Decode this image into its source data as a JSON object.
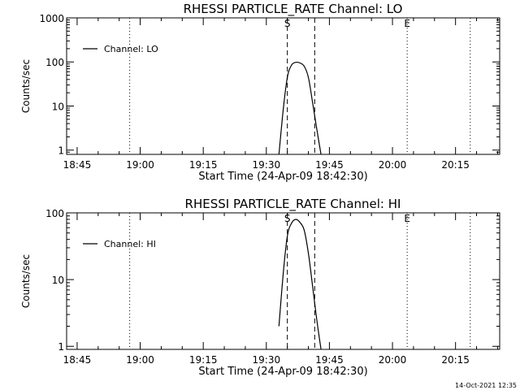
{
  "footer": {
    "timestamp": "14-Oct-2021 12:35"
  },
  "chart_data": [
    {
      "type": "line",
      "title": "RHESSI PARTICLE_RATE Channel: LO",
      "xlabel": "Start Time (24-Apr-09 18:42:30)",
      "ylabel": "Counts/sec",
      "yscale": "log",
      "xlim": [
        "18:42:30",
        "20:25:30"
      ],
      "ylim": [
        0.8,
        1000
      ],
      "x_ticks": [
        "18:45",
        "19:00",
        "19:15",
        "19:30",
        "19:45",
        "20:00",
        "20:15"
      ],
      "y_ticks": [
        "1",
        "10",
        "100",
        "1000"
      ],
      "legend": {
        "position": "top-left",
        "entries": [
          "Channel: LO"
        ]
      },
      "markers": [
        {
          "label": "S",
          "time": "19:35:00",
          "style": "dashed"
        },
        {
          "label": "",
          "time": "19:41:30",
          "style": "dashed"
        },
        {
          "label": "",
          "time": "18:57:30",
          "style": "dotted"
        },
        {
          "label": "E",
          "time": "20:03:30",
          "style": "dotted"
        },
        {
          "label": "",
          "time": "20:18:30",
          "style": "dotted"
        }
      ],
      "series": [
        {
          "name": "Channel: LO",
          "x": [
            "19:33:00",
            "19:34:00",
            "19:35:00",
            "19:36:00",
            "19:37:00",
            "19:38:00",
            "19:39:00",
            "19:40:00",
            "19:41:00",
            "19:42:00",
            "19:43:00"
          ],
          "y": [
            0.8,
            8,
            45,
            85,
            98,
            95,
            80,
            45,
            12,
            3,
            0.8
          ]
        }
      ]
    },
    {
      "type": "line",
      "title": "RHESSI PARTICLE_RATE Channel: HI",
      "xlabel": "Start Time (24-Apr-09 18:42:30)",
      "ylabel": "Counts/sec",
      "yscale": "log",
      "xlim": [
        "18:42:30",
        "20:25:30"
      ],
      "ylim": [
        0.9,
        100
      ],
      "x_ticks": [
        "18:45",
        "19:00",
        "19:15",
        "19:30",
        "19:45",
        "20:00",
        "20:15"
      ],
      "y_ticks": [
        "1",
        "10",
        "100"
      ],
      "legend": {
        "position": "top-left",
        "entries": [
          "Channel: HI"
        ]
      },
      "markers": [
        {
          "label": "S",
          "time": "19:35:00",
          "style": "dashed"
        },
        {
          "label": "",
          "time": "19:41:30",
          "style": "dashed"
        },
        {
          "label": "",
          "time": "18:57:30",
          "style": "dotted"
        },
        {
          "label": "E",
          "time": "20:03:30",
          "style": "dotted"
        },
        {
          "label": "",
          "time": "20:18:30",
          "style": "dotted"
        }
      ],
      "series": [
        {
          "name": "Channel: HI",
          "x": [
            "19:33:00",
            "19:34:00",
            "19:35:00",
            "19:36:00",
            "19:37:00",
            "19:38:00",
            "19:39:00",
            "19:40:00",
            "19:41:00",
            "19:42:00",
            "19:43:00"
          ],
          "y": [
            2,
            12,
            45,
            70,
            80,
            72,
            55,
            25,
            8,
            2.5,
            0.9
          ]
        }
      ]
    }
  ]
}
